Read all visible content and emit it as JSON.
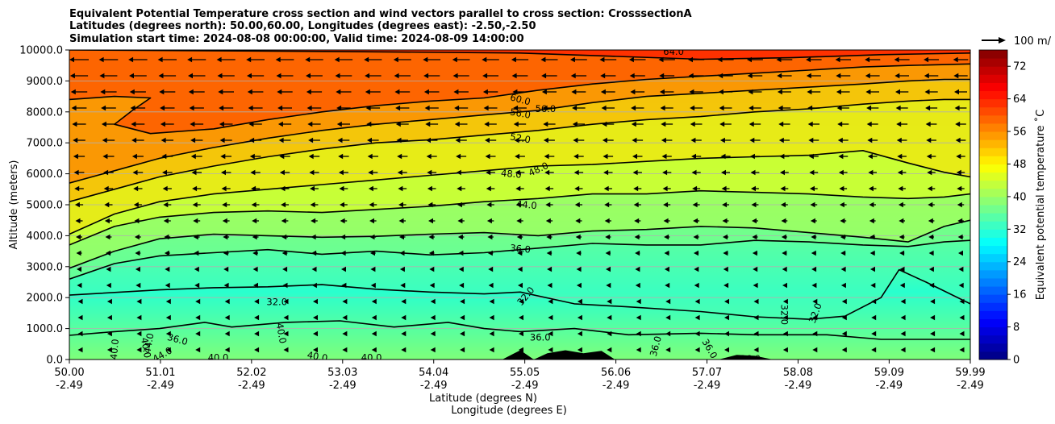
{
  "chart_data": {
    "type": "contour",
    "title_lines": [
      "Equivalent Potential Temperature cross section and wind vectors parallel to cross section: CrosssectionA",
      "Latitudes (degrees north): 50.00,60.00, Longitudes (degrees east): -2.50,-2.50",
      "Simulation start time: 2024-08-08 00:00:00, Valid time: 2024-08-09 14:00:00"
    ],
    "xlabel_lines": [
      "Latitude (degrees N)",
      "Longitude (degrees E)"
    ],
    "ylabel": "Altitude (meters)",
    "xlim": [
      50.0,
      59.99
    ],
    "ylim": [
      0,
      10000
    ],
    "x_ticks": [
      {
        "lat": "50.00",
        "lon": "-2.49",
        "value": 50.0
      },
      {
        "lat": "51.01",
        "lon": "-2.49",
        "value": 51.01
      },
      {
        "lat": "52.02",
        "lon": "-2.49",
        "value": 52.02
      },
      {
        "lat": "53.03",
        "lon": "-2.49",
        "value": 53.03
      },
      {
        "lat": "54.04",
        "lon": "-2.49",
        "value": 54.04
      },
      {
        "lat": "55.05",
        "lon": "-2.49",
        "value": 55.05
      },
      {
        "lat": "56.06",
        "lon": "-2.49",
        "value": 56.06
      },
      {
        "lat": "57.07",
        "lon": "-2.49",
        "value": 57.07
      },
      {
        "lat": "58.08",
        "lon": "-2.49",
        "value": 58.08
      },
      {
        "lat": "59.09",
        "lon": "-2.49",
        "value": 59.09
      },
      {
        "lat": "59.99",
        "lon": "-2.49",
        "value": 59.99
      }
    ],
    "y_ticks": [
      {
        "label": "0.0",
        "value": 0
      },
      {
        "label": "1000.0",
        "value": 1000
      },
      {
        "label": "2000.0",
        "value": 2000
      },
      {
        "label": "3000.0",
        "value": 3000
      },
      {
        "label": "4000.0",
        "value": 4000
      },
      {
        "label": "5000.0",
        "value": 5000
      },
      {
        "label": "6000.0",
        "value": 6000
      },
      {
        "label": "7000.0",
        "value": 7000
      },
      {
        "label": "8000.0",
        "value": 8000
      },
      {
        "label": "9000.0",
        "value": 9000
      },
      {
        "label": "10000.0",
        "value": 10000
      }
    ],
    "grid": "horizontal",
    "colorbar": {
      "label": "Equivalent potential temperature ˚C",
      "min": 0,
      "max": 76,
      "ticks": [
        {
          "label": "0",
          "value": 0
        },
        {
          "label": "8",
          "value": 8
        },
        {
          "label": "16",
          "value": 16
        },
        {
          "label": "24",
          "value": 24
        },
        {
          "label": "32",
          "value": 32
        },
        {
          "label": "40",
          "value": 40
        },
        {
          "label": "48",
          "value": 48
        },
        {
          "label": "56",
          "value": 56
        },
        {
          "label": "64",
          "value": 64
        },
        {
          "label": "72",
          "value": 72
        }
      ]
    },
    "quiver_key": {
      "label": "100 m/",
      "position": "top-right"
    },
    "contours": [
      {
        "level": 32,
        "points": [
          [
            50.0,
            2080
          ],
          [
            51.0,
            2250
          ],
          [
            51.6,
            2320
          ],
          [
            52.2,
            2350
          ],
          [
            52.8,
            2420
          ],
          [
            53.4,
            2270
          ],
          [
            54.0,
            2180
          ],
          [
            54.6,
            2120
          ],
          [
            55.0,
            2180
          ],
          [
            55.6,
            1800
          ],
          [
            56.2,
            1700
          ],
          [
            57.0,
            1550
          ],
          [
            57.6,
            1380
          ],
          [
            58.2,
            1300
          ],
          [
            58.6,
            1400
          ],
          [
            59.0,
            2000
          ],
          [
            59.2,
            2900
          ],
          [
            59.5,
            2500
          ],
          [
            59.99,
            1800
          ]
        ]
      },
      {
        "level": 36,
        "points": [
          [
            50.0,
            780
          ],
          [
            50.5,
            900
          ],
          [
            51.0,
            1000
          ],
          [
            51.5,
            1200
          ],
          [
            51.8,
            1050
          ],
          [
            52.4,
            1200
          ],
          [
            53.0,
            1250
          ],
          [
            53.6,
            1050
          ],
          [
            54.2,
            1200
          ],
          [
            54.6,
            1000
          ],
          [
            55.0,
            900
          ],
          [
            55.6,
            1000
          ],
          [
            56.2,
            800
          ],
          [
            57.0,
            850
          ],
          [
            57.6,
            800
          ],
          [
            58.4,
            800
          ],
          [
            59.0,
            650
          ],
          [
            59.5,
            650
          ],
          [
            59.99,
            650
          ]
        ]
      },
      {
        "level": 36,
        "points": [
          [
            50.0,
            2600
          ],
          [
            50.5,
            3100
          ],
          [
            51.0,
            3350
          ],
          [
            51.6,
            3450
          ],
          [
            52.2,
            3550
          ],
          [
            52.8,
            3400
          ],
          [
            53.4,
            3500
          ],
          [
            54.0,
            3380
          ],
          [
            54.6,
            3450
          ],
          [
            55.2,
            3600
          ],
          [
            55.8,
            3750
          ],
          [
            56.4,
            3700
          ],
          [
            57.0,
            3700
          ],
          [
            57.6,
            3850
          ],
          [
            58.2,
            3800
          ],
          [
            58.8,
            3700
          ],
          [
            59.3,
            3650
          ],
          [
            59.7,
            3800
          ],
          [
            59.99,
            3850
          ]
        ]
      },
      {
        "level": 40,
        "points": [
          [
            50.0,
            2950
          ],
          [
            50.5,
            3500
          ],
          [
            51.0,
            3900
          ],
          [
            51.6,
            4050
          ],
          [
            52.2,
            4000
          ],
          [
            52.8,
            3950
          ],
          [
            53.4,
            3980
          ],
          [
            54.0,
            4050
          ],
          [
            54.6,
            4100
          ],
          [
            55.2,
            4000
          ],
          [
            55.8,
            4150
          ],
          [
            56.4,
            4200
          ],
          [
            57.0,
            4300
          ],
          [
            57.6,
            4250
          ],
          [
            58.2,
            4100
          ],
          [
            58.8,
            3950
          ],
          [
            59.3,
            3800
          ],
          [
            59.7,
            4300
          ],
          [
            59.99,
            4500
          ]
        ]
      },
      {
        "level": 44,
        "points": [
          [
            50.0,
            3700
          ],
          [
            50.5,
            4300
          ],
          [
            51.0,
            4600
          ],
          [
            51.6,
            4750
          ],
          [
            52.2,
            4800
          ],
          [
            52.8,
            4750
          ],
          [
            53.4,
            4850
          ],
          [
            54.0,
            4950
          ],
          [
            54.6,
            5100
          ],
          [
            55.2,
            5200
          ],
          [
            55.8,
            5350
          ],
          [
            56.4,
            5350
          ],
          [
            57.0,
            5450
          ],
          [
            57.6,
            5400
          ],
          [
            58.2,
            5350
          ],
          [
            58.8,
            5250
          ],
          [
            59.3,
            5200
          ],
          [
            59.7,
            5250
          ],
          [
            59.99,
            5350
          ]
        ]
      },
      {
        "level": 48,
        "points": [
          [
            50.0,
            4050
          ],
          [
            50.5,
            4700
          ],
          [
            51.0,
            5100
          ],
          [
            51.6,
            5350
          ],
          [
            52.2,
            5500
          ],
          [
            52.8,
            5650
          ],
          [
            53.4,
            5800
          ],
          [
            54.0,
            5950
          ],
          [
            54.6,
            6100
          ],
          [
            55.2,
            6250
          ],
          [
            55.8,
            6300
          ],
          [
            56.4,
            6400
          ],
          [
            57.0,
            6500
          ],
          [
            57.6,
            6550
          ],
          [
            58.2,
            6600
          ],
          [
            58.8,
            6750
          ],
          [
            59.3,
            6350
          ],
          [
            59.7,
            6050
          ],
          [
            59.99,
            5900
          ]
        ]
      },
      {
        "level": 52,
        "points": [
          [
            50.0,
            5100
          ],
          [
            50.5,
            5500
          ],
          [
            51.0,
            5900
          ],
          [
            51.6,
            6250
          ],
          [
            52.2,
            6550
          ],
          [
            52.8,
            6800
          ],
          [
            53.4,
            7000
          ],
          [
            54.0,
            7100
          ],
          [
            54.6,
            7250
          ],
          [
            55.2,
            7400
          ],
          [
            55.8,
            7600
          ],
          [
            56.4,
            7750
          ],
          [
            57.0,
            7850
          ],
          [
            57.6,
            8000
          ],
          [
            58.2,
            8100
          ],
          [
            58.8,
            8250
          ],
          [
            59.3,
            8350
          ],
          [
            59.7,
            8400
          ],
          [
            59.99,
            8400
          ]
        ]
      },
      {
        "level": 56,
        "points": [
          [
            50.0,
            5700
          ],
          [
            50.5,
            6100
          ],
          [
            51.0,
            6500
          ],
          [
            51.6,
            6850
          ],
          [
            52.2,
            7150
          ],
          [
            52.8,
            7400
          ],
          [
            53.4,
            7600
          ],
          [
            54.0,
            7750
          ],
          [
            54.6,
            7900
          ],
          [
            55.2,
            8050
          ],
          [
            55.8,
            8300
          ],
          [
            56.4,
            8500
          ],
          [
            57.0,
            8600
          ],
          [
            57.6,
            8700
          ],
          [
            58.2,
            8800
          ],
          [
            58.8,
            8900
          ],
          [
            59.3,
            9000
          ],
          [
            59.7,
            9050
          ],
          [
            59.99,
            9050
          ]
        ]
      },
      {
        "level": 60,
        "points": [
          [
            50.0,
            8400
          ],
          [
            50.5,
            8500
          ],
          [
            50.9,
            8450
          ],
          [
            50.7,
            8050
          ],
          [
            50.5,
            7600
          ],
          [
            50.9,
            7300
          ],
          [
            51.6,
            7450
          ],
          [
            52.2,
            7750
          ],
          [
            52.8,
            8000
          ],
          [
            53.4,
            8200
          ],
          [
            54.0,
            8350
          ],
          [
            54.6,
            8450
          ],
          [
            55.2,
            8700
          ],
          [
            55.8,
            8900
          ],
          [
            56.4,
            9050
          ],
          [
            57.0,
            9150
          ],
          [
            57.6,
            9250
          ],
          [
            58.2,
            9350
          ],
          [
            58.8,
            9450
          ],
          [
            59.3,
            9500
          ],
          [
            59.99,
            9550
          ]
        ]
      },
      {
        "level": 64,
        "points": [
          [
            50.0,
            10000
          ],
          [
            53.0,
            9950
          ],
          [
            55.0,
            9900
          ],
          [
            56.0,
            9800
          ],
          [
            57.0,
            9700
          ],
          [
            58.0,
            9750
          ],
          [
            59.0,
            9850
          ],
          [
            59.99,
            9900
          ]
        ]
      }
    ],
    "contour_labels": [
      {
        "text": "32.0",
        "x": 52.3,
        "y": 1860,
        "rotate": 0
      },
      {
        "text": "32.0",
        "x": 55.06,
        "y": 2050,
        "rotate": -50
      },
      {
        "text": "32.0",
        "x": 58.27,
        "y": 1500,
        "rotate": -70
      },
      {
        "text": "32.0",
        "x": 57.93,
        "y": 1450,
        "rotate": 90
      },
      {
        "text": "36.0",
        "x": 51.2,
        "y": 650,
        "rotate": 15
      },
      {
        "text": "36.0",
        "x": 55.22,
        "y": 720,
        "rotate": 0
      },
      {
        "text": "36.0",
        "x": 56.5,
        "y": 430,
        "rotate": -75
      },
      {
        "text": "36.0",
        "x": 57.1,
        "y": 350,
        "rotate": 60
      },
      {
        "text": "36.0",
        "x": 57.55,
        "y": 30,
        "rotate": 0
      },
      {
        "text": "36.0",
        "x": 55.0,
        "y": 3580,
        "rotate": 5
      },
      {
        "text": "40.0",
        "x": 50.85,
        "y": 380,
        "rotate": 80
      },
      {
        "text": "40.0",
        "x": 52.35,
        "y": 850,
        "rotate": 80
      },
      {
        "text": "40.0",
        "x": 52.75,
        "y": 100,
        "rotate": 10
      },
      {
        "text": "40.0",
        "x": 53.35,
        "y": 60,
        "rotate": 0
      },
      {
        "text": "40.0",
        "x": 51.65,
        "y": 60,
        "rotate": 0
      },
      {
        "text": "40.0",
        "x": 50.5,
        "y": 330,
        "rotate": -85
      },
      {
        "text": "44.0",
        "x": 50.88,
        "y": 520,
        "rotate": -80
      },
      {
        "text": "44.0",
        "x": 51.03,
        "y": 160,
        "rotate": -30
      },
      {
        "text": "44.0",
        "x": 55.07,
        "y": 5000,
        "rotate": 5
      },
      {
        "text": "48.0",
        "x": 54.9,
        "y": 6000,
        "rotate": 5
      },
      {
        "text": "48.0",
        "x": 55.2,
        "y": 6150,
        "rotate": -25
      },
      {
        "text": "52.0",
        "x": 55.0,
        "y": 7150,
        "rotate": 10
      },
      {
        "text": "56.0",
        "x": 55.0,
        "y": 7950,
        "rotate": 10
      },
      {
        "text": "56.0",
        "x": 55.28,
        "y": 8100,
        "rotate": 0
      },
      {
        "text": "60.0",
        "x": 55.0,
        "y": 8400,
        "rotate": 15
      },
      {
        "text": "64.0",
        "x": 56.7,
        "y": 9950,
        "rotate": 0
      }
    ],
    "terrain": [
      [
        54.8,
        0
      ],
      [
        55.0,
        300
      ],
      [
        55.15,
        0
      ],
      [
        55.3,
        200
      ],
      [
        55.5,
        300
      ],
      [
        55.7,
        200
      ],
      [
        55.9,
        280
      ],
      [
        56.05,
        0
      ],
      [
        57.2,
        0
      ],
      [
        57.4,
        150
      ],
      [
        57.6,
        120
      ],
      [
        57.8,
        0
      ]
    ]
  }
}
